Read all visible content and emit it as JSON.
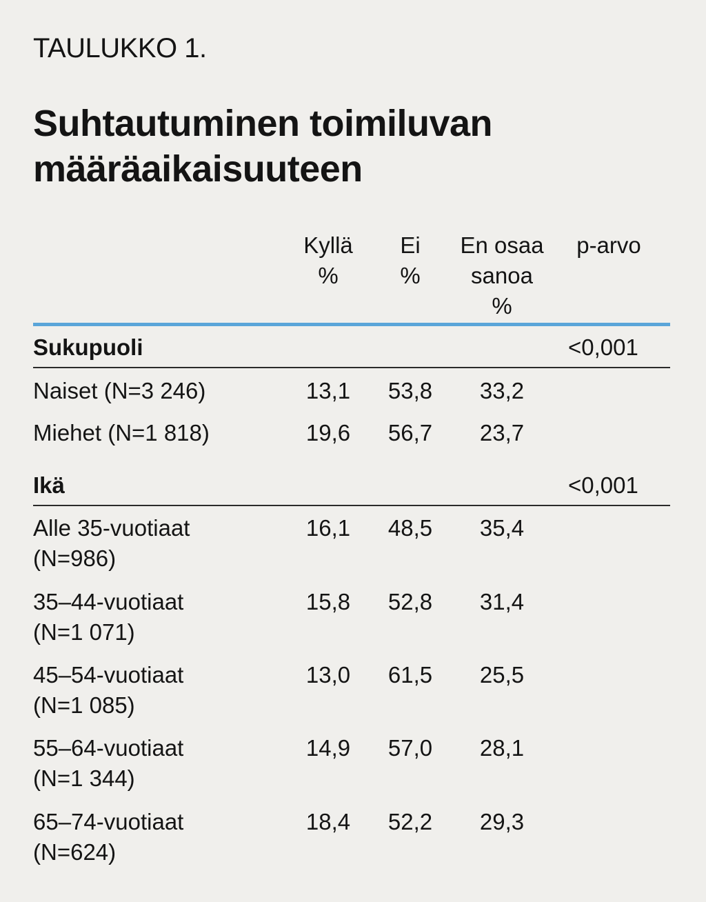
{
  "label": "TAULUKKO 1.",
  "title": [
    "Suhtautuminen toimiluvan",
    "määräaikaisuuteen"
  ],
  "columns": [
    {
      "lines": [
        "Kyllä",
        "%"
      ]
    },
    {
      "lines": [
        "Ei",
        "%"
      ]
    },
    {
      "lines": [
        "En osaa",
        "sanoa",
        "%"
      ]
    },
    {
      "lines": [
        "p-arvo"
      ]
    }
  ],
  "sections": [
    {
      "name": "Sukupuoli",
      "p": "<0,001",
      "rows": [
        {
          "label": [
            "Naiset (N=3 246)"
          ],
          "values": [
            "13,1",
            "53,8",
            "33,2"
          ]
        },
        {
          "label": [
            "Miehet (N=1 818)"
          ],
          "values": [
            "19,6",
            "56,7",
            "23,7"
          ]
        }
      ]
    },
    {
      "name": "Ikä",
      "p": "<0,001",
      "rows": [
        {
          "label": [
            "Alle 35-vuotiaat",
            "(N=986)"
          ],
          "values": [
            "16,1",
            "48,5",
            "35,4"
          ]
        },
        {
          "label": [
            "35–44-vuotiaat",
            "(N=1 071)"
          ],
          "values": [
            "15,8",
            "52,8",
            "31,4"
          ]
        },
        {
          "label": [
            "45–54-vuotiaat",
            "(N=1 085)"
          ],
          "values": [
            "13,0",
            "61,5",
            "25,5"
          ]
        },
        {
          "label": [
            "55–64-vuotiaat",
            "(N=1 344)"
          ],
          "values": [
            "14,9",
            "57,0",
            "28,1"
          ]
        },
        {
          "label": [
            "65–74-vuotiaat",
            "(N=624)"
          ],
          "values": [
            "18,4",
            "52,2",
            "29,3"
          ]
        }
      ]
    }
  ],
  "colors": {
    "background": "#f0efec",
    "accent_rule": "#5aa5d9",
    "text": "#141414"
  }
}
